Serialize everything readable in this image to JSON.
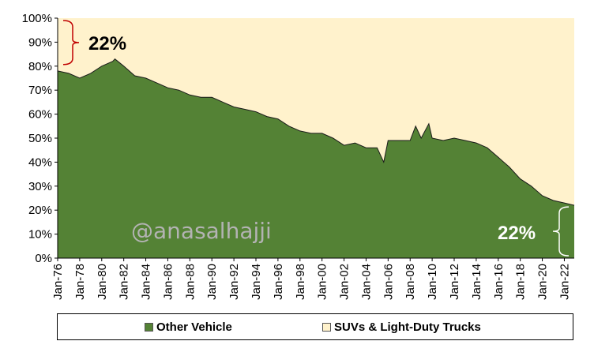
{
  "chart_data": {
    "type": "area",
    "stacked_percent": true,
    "title": "",
    "xlabel": "",
    "ylabel": "",
    "ylim": [
      0,
      100
    ],
    "y_ticks": [
      "0%",
      "10%",
      "20%",
      "30%",
      "40%",
      "50%",
      "60%",
      "70%",
      "80%",
      "90%",
      "100%"
    ],
    "x_ticks": [
      "Jan-76",
      "Jan-78",
      "Jan-80",
      "Jan-82",
      "Jan-84",
      "Jan-86",
      "Jan-88",
      "Jan-90",
      "Jan-92",
      "Jan-94",
      "Jan-96",
      "Jan-98",
      "Jan-00",
      "Jan-02",
      "Jan-04",
      "Jan-06",
      "Jan-08",
      "Jan-10",
      "Jan-12",
      "Jan-14",
      "Jan-16",
      "Jan-18",
      "Jan-20",
      "Jan-22"
    ],
    "x": [
      1976.0,
      1977.0,
      1978.0,
      1979.0,
      1980.0,
      1981.0,
      1981.2,
      1982.0,
      1983.0,
      1984.0,
      1985.0,
      1986.0,
      1987.0,
      1988.0,
      1989.0,
      1990.0,
      1991.0,
      1992.0,
      1993.0,
      1994.0,
      1995.0,
      1996.0,
      1997.0,
      1998.0,
      1999.0,
      2000.0,
      2001.0,
      2002.0,
      2003.0,
      2004.0,
      2005.0,
      2005.6,
      2006.0,
      2007.0,
      2008.0,
      2008.5,
      2009.0,
      2009.7,
      2010.0,
      2011.0,
      2012.0,
      2013.0,
      2014.0,
      2015.0,
      2016.0,
      2017.0,
      2018.0,
      2019.0,
      2020.0,
      2021.0,
      2022.0,
      2022.9
    ],
    "series": [
      {
        "name": "Other Vehicle",
        "color": "#548235",
        "values": [
          78,
          77,
          75,
          77,
          80,
          82,
          83,
          80,
          76,
          75,
          73,
          71,
          70,
          68,
          67,
          67,
          65,
          63,
          62,
          61,
          59,
          58,
          55,
          53,
          52,
          52,
          50,
          47,
          48,
          46,
          46,
          40,
          49,
          49,
          49,
          55,
          50,
          56,
          50,
          49,
          50,
          49,
          48,
          46,
          42,
          38,
          33,
          30,
          26,
          24,
          23,
          22
        ]
      },
      {
        "name": "SUVs & Light-Duty Trucks",
        "color": "#fff2cc",
        "values": [
          22,
          23,
          25,
          23,
          20,
          18,
          17,
          20,
          24,
          25,
          27,
          29,
          30,
          32,
          33,
          33,
          35,
          37,
          38,
          39,
          41,
          42,
          45,
          47,
          48,
          48,
          50,
          53,
          52,
          54,
          54,
          60,
          51,
          51,
          51,
          45,
          50,
          44,
          50,
          51,
          50,
          51,
          52,
          54,
          58,
          62,
          67,
          70,
          74,
          76,
          77,
          78
        ]
      }
    ],
    "annotations": {
      "start_share": "22%",
      "end_share": "22%",
      "bracket_start_color": "#c00000",
      "bracket_end_color": "#ffffff"
    },
    "legend_position": "bottom"
  },
  "watermark": "@anasalhajji",
  "legend": {
    "items": [
      {
        "label": "Other Vehicle",
        "color": "#548235"
      },
      {
        "label": "SUVs & Light-Duty Trucks",
        "color": "#fff2cc"
      }
    ]
  }
}
